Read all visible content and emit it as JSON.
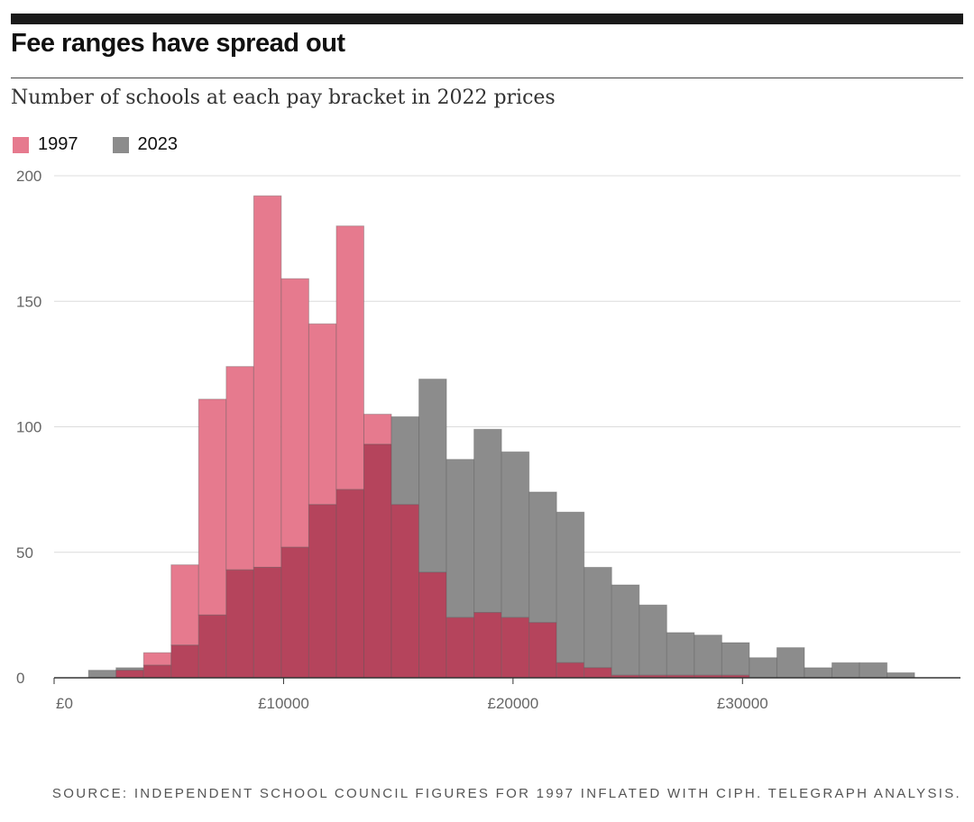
{
  "header": {
    "title": "Fee ranges have spread out",
    "subtitle": "Number of schools at each pay bracket in 2022 prices"
  },
  "legend": {
    "items": [
      {
        "label": "1997",
        "color": "#e67a8e"
      },
      {
        "label": "2023",
        "color": "#8c8c8c"
      }
    ]
  },
  "chart_data": {
    "type": "bar",
    "title": "Fee ranges have spread out",
    "subtitle": "Number of schools at each pay bracket in 2022 prices",
    "xlabel": "",
    "ylabel": "",
    "bin_start": 1500,
    "bin_width": 1200,
    "xlim": [
      0,
      39500
    ],
    "ylim": [
      0,
      200
    ],
    "yticks": [
      0,
      50,
      100,
      150,
      200
    ],
    "ytick_labels": [
      "0",
      "50",
      "100",
      "150",
      "200"
    ],
    "xticks": [
      0,
      10000,
      20000,
      30000
    ],
    "xtick_labels": [
      "£0",
      "£10000",
      "£20000",
      "£30000"
    ],
    "grid": true,
    "legend_position": "top-left",
    "overlap_color": "#b5445c",
    "series": [
      {
        "name": "1997",
        "color": "#e67a8e",
        "values": [
          0,
          3,
          10,
          45,
          111,
          124,
          192,
          159,
          141,
          180,
          105,
          69,
          42,
          24,
          26,
          24,
          22,
          6,
          4,
          1,
          1,
          1,
          1,
          1,
          0,
          0,
          0,
          0,
          0,
          0
        ]
      },
      {
        "name": "2023",
        "color": "#8c8c8c",
        "values": [
          3,
          4,
          5,
          13,
          25,
          43,
          44,
          52,
          69,
          75,
          93,
          104,
          119,
          87,
          99,
          90,
          74,
          66,
          44,
          37,
          29,
          18,
          17,
          14,
          8,
          12,
          4,
          6,
          6,
          2
        ]
      }
    ]
  },
  "footer": {
    "source": "SOURCE: INDEPENDENT SCHOOL COUNCIL FIGURES FOR 1997 INFLATED WITH CIPH. TELEGRAPH ANALYSIS."
  }
}
